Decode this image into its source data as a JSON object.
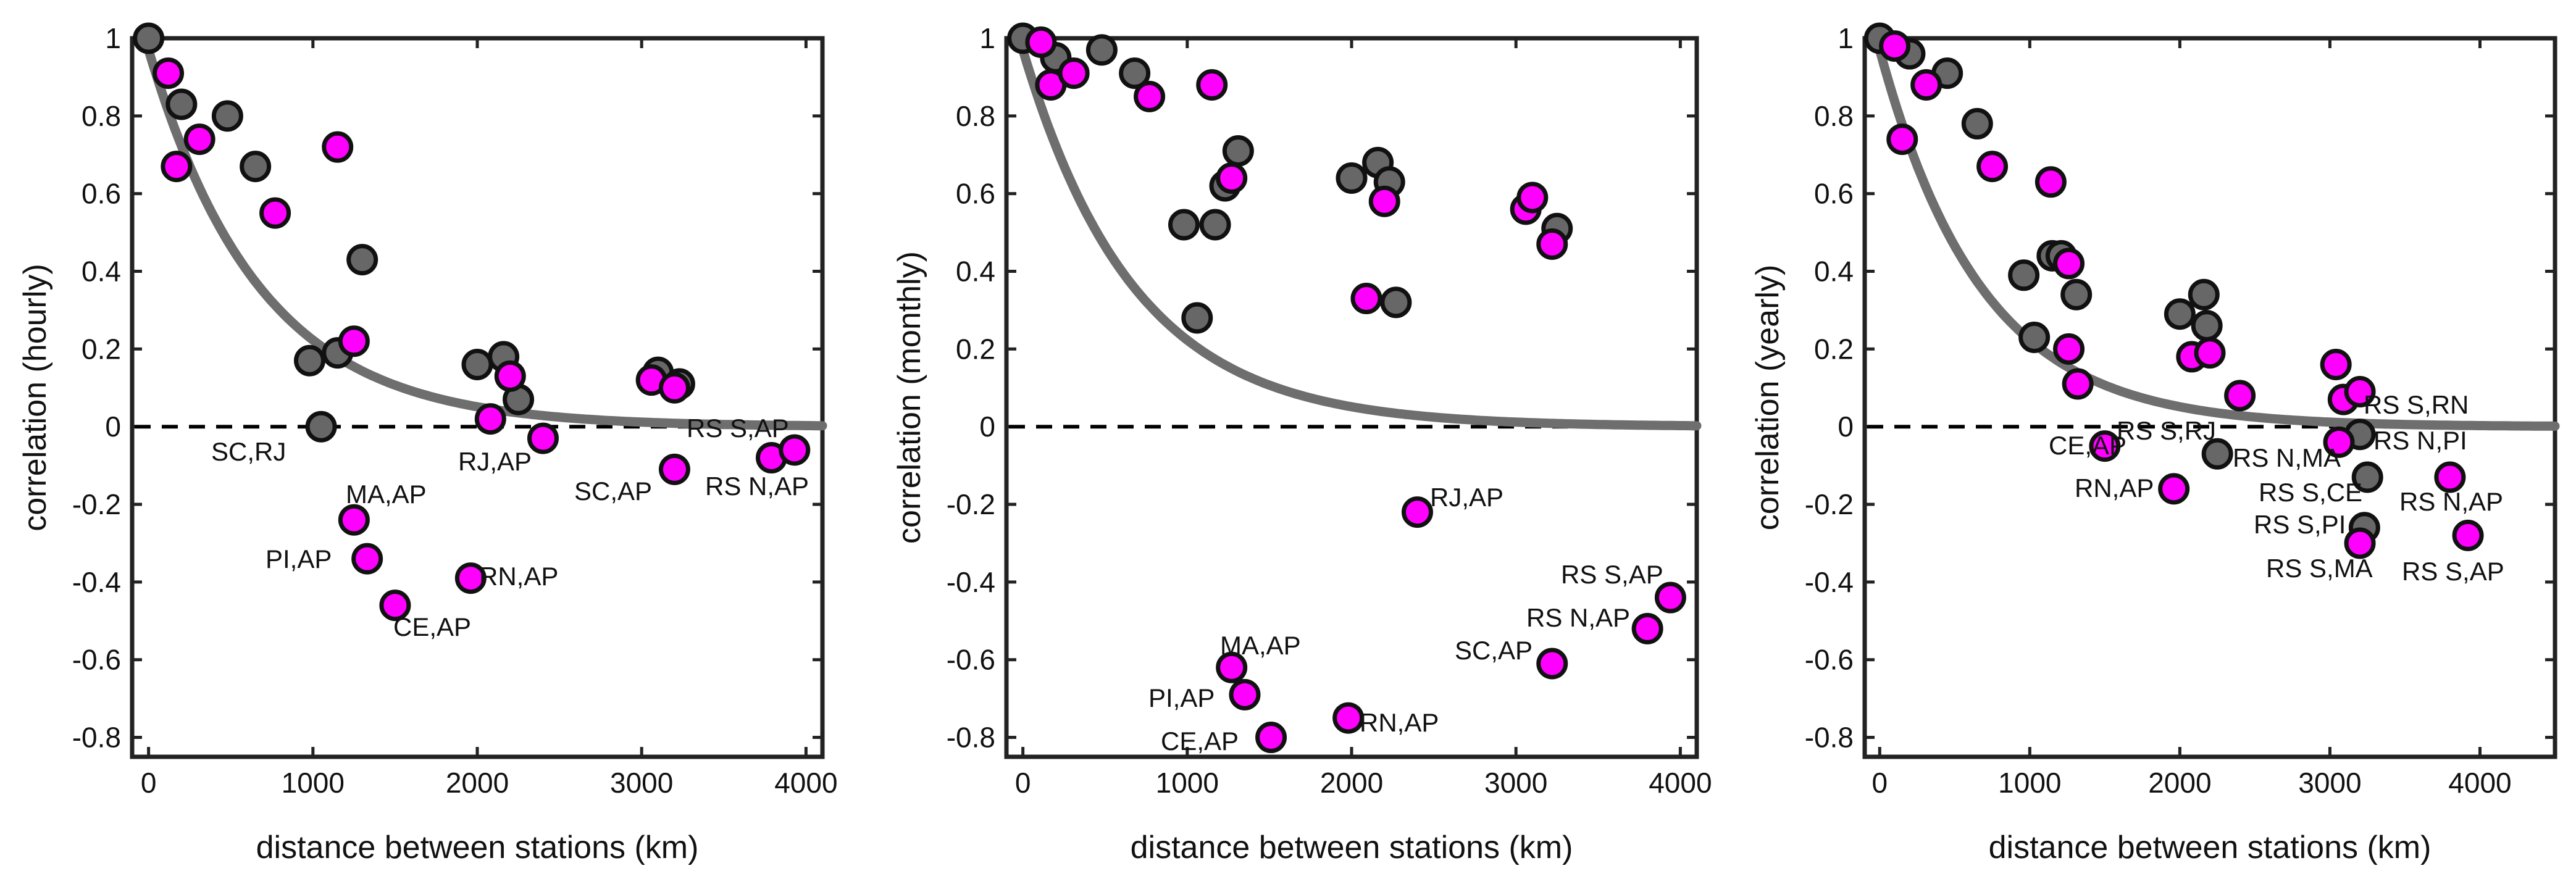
{
  "figure": {
    "colors": {
      "gray": "#676767",
      "magenta": "#ff00ff",
      "curve": "#6e6e6e",
      "edge": "#111111"
    }
  },
  "chart_data": [
    {
      "type": "scatter",
      "id": "hourly",
      "xlabel": "distance between stations (km)",
      "ylabel": "correlation (hourly)",
      "xlim": [
        -100,
        4100
      ],
      "ylim": [
        -0.85,
        1.0
      ],
      "xticks": [
        0,
        1000,
        2000,
        3000,
        4000
      ],
      "xtick_labels": [
        "0",
        "1000",
        "2000",
        "3000",
        "4000"
      ],
      "yticks": [
        1,
        0.8,
        0.6,
        0.4,
        0.2,
        0,
        -0.2,
        -0.4,
        -0.6,
        -0.8
      ],
      "ytick_labels": [
        "1",
        "0.8",
        "0.6",
        "0.4",
        "0.2",
        "0",
        "-0.2",
        "-0.4",
        "-0.6",
        "-0.8"
      ],
      "zero_line": "dashed",
      "fit": {
        "kind": "exponential decay",
        "a": 0.97,
        "scale_km": 680
      },
      "series": [
        {
          "name": "gray",
          "color": "#676767",
          "points": [
            [
              0,
              1.0
            ],
            [
              200,
              0.83
            ],
            [
              480,
              0.8
            ],
            [
              650,
              0.67
            ],
            [
              980,
              0.17
            ],
            [
              1050,
              0.0
            ],
            [
              1150,
              0.19
            ],
            [
              1300,
              0.43
            ],
            [
              2000,
              0.16
            ],
            [
              2160,
              0.18
            ],
            [
              2250,
              0.07
            ],
            [
              3100,
              0.14
            ],
            [
              3230,
              0.11
            ]
          ]
        },
        {
          "name": "magenta",
          "color": "#ff00ff",
          "points": [
            [
              120,
              0.91
            ],
            [
              170,
              0.67
            ],
            [
              310,
              0.74
            ],
            [
              770,
              0.55
            ],
            [
              1150,
              0.72
            ],
            [
              1250,
              0.22
            ],
            [
              1250,
              -0.24
            ],
            [
              1330,
              -0.34
            ],
            [
              1500,
              -0.46
            ],
            [
              1960,
              -0.39
            ],
            [
              2080,
              0.02
            ],
            [
              2200,
              0.13
            ],
            [
              2400,
              -0.03
            ],
            [
              3060,
              0.12
            ],
            [
              3200,
              0.1
            ],
            [
              3200,
              -0.11
            ],
            [
              3790,
              -0.08
            ],
            [
              3930,
              -0.06
            ]
          ]
        }
      ],
      "annotations": [
        "SC,RJ",
        "MA,AP",
        "PI,AP",
        "CE,AP",
        "RN,AP",
        "RJ,AP",
        "SC,AP",
        "RS S,AP",
        "RS N,AP"
      ]
    },
    {
      "type": "scatter",
      "id": "monthly",
      "xlabel": "distance between stations (km)",
      "ylabel": "correlation (monthly)",
      "xlim": [
        -100,
        4100
      ],
      "ylim": [
        -0.85,
        1.0
      ],
      "xticks": [
        0,
        1000,
        2000,
        3000,
        4000
      ],
      "xtick_labels": [
        "0",
        "1000",
        "2000",
        "3000",
        "4000"
      ],
      "yticks": [
        1,
        0.8,
        0.6,
        0.4,
        0.2,
        0,
        -0.2,
        -0.4,
        -0.6,
        -0.8
      ],
      "ytick_labels": [
        "1",
        "0.8",
        "0.6",
        "0.4",
        "0.2",
        "0",
        "-0.2",
        "-0.4",
        "-0.6",
        "-0.8"
      ],
      "zero_line": "dashed",
      "fit": {
        "kind": "exponential decay",
        "a": 0.97,
        "scale_km": 680
      },
      "series": [
        {
          "name": "gray",
          "color": "#676767",
          "points": [
            [
              0,
              1.0
            ],
            [
              200,
              0.95
            ],
            [
              480,
              0.97
            ],
            [
              680,
              0.91
            ],
            [
              980,
              0.52
            ],
            [
              1060,
              0.28
            ],
            [
              1170,
              0.52
            ],
            [
              1230,
              0.62
            ],
            [
              1310,
              0.71
            ],
            [
              2000,
              0.64
            ],
            [
              2160,
              0.68
            ],
            [
              2230,
              0.63
            ],
            [
              2270,
              0.32
            ],
            [
              3250,
              0.51
            ]
          ]
        },
        {
          "name": "magenta",
          "color": "#ff00ff",
          "points": [
            [
              110,
              0.99
            ],
            [
              170,
              0.88
            ],
            [
              310,
              0.91
            ],
            [
              770,
              0.85
            ],
            [
              1150,
              0.88
            ],
            [
              1270,
              0.64
            ],
            [
              1270,
              -0.62
            ],
            [
              1350,
              -0.69
            ],
            [
              1510,
              -0.8
            ],
            [
              1980,
              -0.75
            ],
            [
              2090,
              0.33
            ],
            [
              2200,
              0.58
            ],
            [
              2400,
              -0.22
            ],
            [
              3060,
              0.56
            ],
            [
              3100,
              0.59
            ],
            [
              3220,
              0.47
            ],
            [
              3220,
              -0.61
            ],
            [
              3800,
              -0.52
            ],
            [
              3940,
              -0.44
            ]
          ]
        }
      ],
      "annotations": [
        "MA,AP",
        "PI,AP",
        "CE,AP",
        "RN,AP",
        "RJ,AP",
        "SC,AP",
        "RS N,AP",
        "RS S,AP"
      ]
    },
    {
      "type": "scatter",
      "id": "yearly",
      "xlabel": "distance between stations (km)",
      "ylabel": "correlation (yearly)",
      "xlim": [
        -100,
        4500
      ],
      "ylim": [
        -0.85,
        1.0
      ],
      "xticks": [
        0,
        1000,
        2000,
        3000,
        4000
      ],
      "xtick_labels": [
        "0",
        "1000",
        "2000",
        "3000",
        "4000"
      ],
      "yticks": [
        1,
        0.8,
        0.6,
        0.4,
        0.2,
        0,
        -0.2,
        -0.4,
        -0.6,
        -0.8
      ],
      "ytick_labels": [
        "1",
        "0.8",
        "0.6",
        "0.4",
        "0.2",
        "0",
        "-0.2",
        "-0.4",
        "-0.6",
        "-0.8"
      ],
      "zero_line": "dashed",
      "fit": {
        "kind": "exponential decay",
        "a": 0.97,
        "scale_km": 680
      },
      "series": [
        {
          "name": "gray",
          "color": "#676767",
          "points": [
            [
              0,
              1.0
            ],
            [
              200,
              0.96
            ],
            [
              450,
              0.91
            ],
            [
              650,
              0.78
            ],
            [
              960,
              0.39
            ],
            [
              1030,
              0.23
            ],
            [
              1150,
              0.44
            ],
            [
              1210,
              0.44
            ],
            [
              1310,
              0.34
            ],
            [
              2000,
              0.29
            ],
            [
              2160,
              0.34
            ],
            [
              2180,
              0.26
            ],
            [
              2250,
              -0.07
            ],
            [
              3200,
              -0.02
            ],
            [
              3250,
              -0.13
            ],
            [
              3230,
              -0.26
            ]
          ]
        },
        {
          "name": "magenta",
          "color": "#ff00ff",
          "points": [
            [
              100,
              0.98
            ],
            [
              150,
              0.74
            ],
            [
              310,
              0.88
            ],
            [
              750,
              0.67
            ],
            [
              1140,
              0.63
            ],
            [
              1260,
              0.42
            ],
            [
              1260,
              0.2
            ],
            [
              1320,
              0.11
            ],
            [
              1500,
              -0.05
            ],
            [
              1960,
              -0.16
            ],
            [
              2080,
              0.18
            ],
            [
              2200,
              0.19
            ],
            [
              2400,
              0.08
            ],
            [
              3040,
              0.16
            ],
            [
              3090,
              0.07
            ],
            [
              3060,
              -0.04
            ],
            [
              3200,
              0.09
            ],
            [
              3200,
              -0.3
            ],
            [
              3800,
              -0.13
            ],
            [
              3920,
              -0.28
            ]
          ]
        }
      ],
      "annotations": [
        "CE,AP",
        "RS S,RJ",
        "RN,AP",
        "RS N,MA",
        "RS S,RN",
        "RS N,PI",
        "RS S,CE",
        "RS S,PI",
        "RS N,AP",
        "RS S,MA",
        "RS S,AP"
      ]
    }
  ]
}
